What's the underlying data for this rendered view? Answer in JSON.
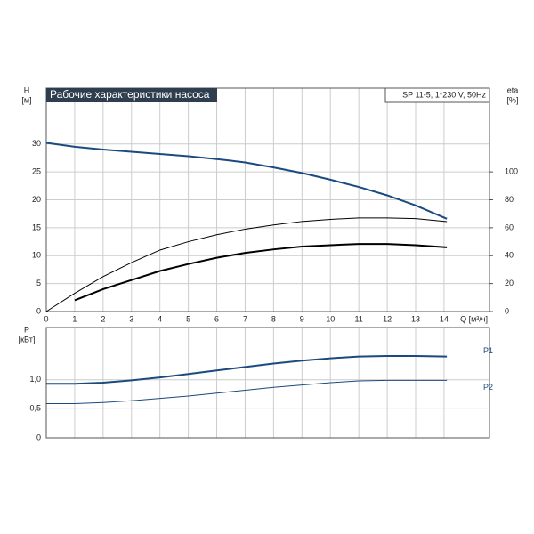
{
  "chart_data": [
    {
      "type": "line",
      "title": "Рабочие характеристики насоса",
      "subtitle": "SP 11-5, 1*230 V, 50Hz",
      "y_label": "H",
      "y_unit": "[м]",
      "y2_label": "eta",
      "y2_unit": "[%]",
      "x_label": "Q [м³/ч]",
      "xlim": [
        0,
        15.6
      ],
      "xticks": [
        0,
        1,
        2,
        3,
        4,
        5,
        6,
        7,
        8,
        9,
        10,
        11,
        12,
        13,
        14
      ],
      "ylim": [
        0,
        40
      ],
      "yticks": [
        0,
        5,
        10,
        15,
        20,
        25,
        30
      ],
      "y2lim": [
        0,
        160
      ],
      "y2ticks": [
        0,
        20,
        40,
        60,
        80,
        100
      ],
      "grid": true,
      "series": [
        {
          "color": "#1a4a7e",
          "width": 2,
          "x": [
            0,
            1,
            2,
            3,
            4,
            5,
            6,
            7,
            8,
            9,
            10,
            11,
            12,
            13,
            14.1
          ],
          "values": [
            30.2,
            29.5,
            29.0,
            28.6,
            28.2,
            27.8,
            27.3,
            26.7,
            25.8,
            24.8,
            23.6,
            22.3,
            20.8,
            19.0,
            16.6
          ]
        },
        {
          "color": "#000000",
          "width": 1,
          "axis": "y2",
          "x": [
            0,
            1,
            2,
            3,
            4,
            5,
            6,
            7,
            8,
            9,
            10,
            11,
            12,
            13,
            14.1
          ],
          "values": [
            0,
            13,
            25,
            35,
            44,
            50,
            55,
            59,
            62,
            64.5,
            66,
            67,
            67,
            66.5,
            64.4
          ]
        },
        {
          "color": "#000000",
          "width": 2,
          "axis": "y2",
          "x": [
            1,
            2,
            3,
            4,
            5,
            6,
            7,
            8,
            9,
            10,
            11,
            12,
            13,
            14.1
          ],
          "values": [
            8,
            16,
            22.5,
            29,
            34,
            38.5,
            42,
            44.5,
            46.5,
            47.5,
            48.4,
            48.4,
            47.5,
            46
          ]
        }
      ]
    },
    {
      "type": "line",
      "y_label": "P",
      "y_unit": "[кВт]",
      "xlim": [
        0,
        15.6
      ],
      "xticks": [
        0,
        1,
        2,
        3,
        4,
        5,
        6,
        7,
        8,
        9,
        10,
        11,
        12,
        13,
        14
      ],
      "xtick_labels": false,
      "ylim": [
        0,
        1.9
      ],
      "yticks": [
        0,
        {
          "value": 0.5,
          "label": "0,5"
        },
        {
          "value": 1,
          "label": "1,0"
        }
      ],
      "grid": true,
      "series": [
        {
          "name": "P1",
          "color": "#1a4a7e",
          "width": 2,
          "x": [
            0,
            1,
            2,
            3,
            4,
            5,
            6,
            7,
            8,
            9,
            10,
            11,
            12,
            13,
            14.1
          ],
          "values": [
            0.93,
            0.93,
            0.95,
            0.99,
            1.04,
            1.1,
            1.16,
            1.22,
            1.28,
            1.33,
            1.37,
            1.4,
            1.41,
            1.41,
            1.4
          ]
        },
        {
          "name": "P2",
          "color": "#1a4a7e",
          "width": 1,
          "x": [
            0,
            1,
            2,
            3,
            4,
            5,
            6,
            7,
            8,
            9,
            10,
            11,
            12,
            13,
            14.1
          ],
          "values": [
            0.59,
            0.59,
            0.61,
            0.64,
            0.68,
            0.72,
            0.77,
            0.82,
            0.87,
            0.91,
            0.95,
            0.98,
            0.99,
            0.99,
            0.99
          ]
        }
      ]
    }
  ]
}
